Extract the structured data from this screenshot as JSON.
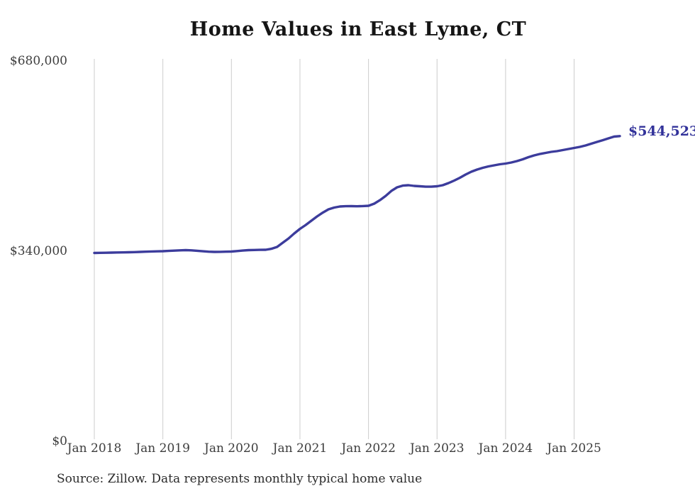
{
  "chart": {
    "title": "Home Values in East Lyme, CT",
    "source": "Source: Zillow. Data represents monthly typical home value",
    "current_value_label": "$544,523",
    "colors": {
      "line": "#3c3c9c",
      "current_value_label": "#32329a",
      "gridline": "#cccccc",
      "axis_text": "#3d3d3d",
      "title_text": "#151515"
    }
  },
  "chart_data": {
    "type": "line",
    "title": "Home Values in East Lyme, CT",
    "xlabel": "",
    "ylabel": "",
    "ylim": [
      0,
      680000
    ],
    "grid": "vertical-only",
    "legend": "none",
    "interval": "monthly",
    "start_month": "2018-01",
    "end_month": "2025-09",
    "x_tick_labels": [
      "Jan 2018",
      "Jan 2019",
      "Jan 2020",
      "Jan 2021",
      "Jan 2022",
      "Jan 2023",
      "Jan 2024",
      "Jan 2025"
    ],
    "y_ticks": [
      {
        "label": "$680,000",
        "value": 680000
      },
      {
        "label": "$340,000",
        "value": 340000
      },
      {
        "label": "$0",
        "value": 0
      }
    ],
    "series": [
      {
        "name": "Typical home value",
        "final_value": 544523,
        "values": [
          335600,
          335800,
          336000,
          336200,
          336400,
          336600,
          336800,
          337100,
          337400,
          337800,
          338200,
          338500,
          338700,
          339200,
          339800,
          340300,
          340600,
          340200,
          339500,
          338600,
          337900,
          337400,
          337600,
          337900,
          338100,
          339000,
          339900,
          340600,
          340900,
          341100,
          341300,
          343000,
          346300,
          353900,
          361500,
          370400,
          378700,
          385600,
          393300,
          400900,
          407800,
          413600,
          416700,
          418600,
          419200,
          419300,
          419100,
          419400,
          419900,
          423700,
          430000,
          437600,
          446500,
          452900,
          456000,
          456700,
          455400,
          454800,
          454100,
          454100,
          454800,
          456700,
          460500,
          465000,
          470000,
          475700,
          480800,
          484600,
          487800,
          490300,
          492200,
          494100,
          495400,
          497300,
          499800,
          503000,
          506800,
          510000,
          512500,
          514400,
          516300,
          517600,
          519500,
          521400,
          523300,
          525200,
          527700,
          530900,
          534100,
          537200,
          540400,
          543600,
          544523
        ]
      }
    ]
  }
}
